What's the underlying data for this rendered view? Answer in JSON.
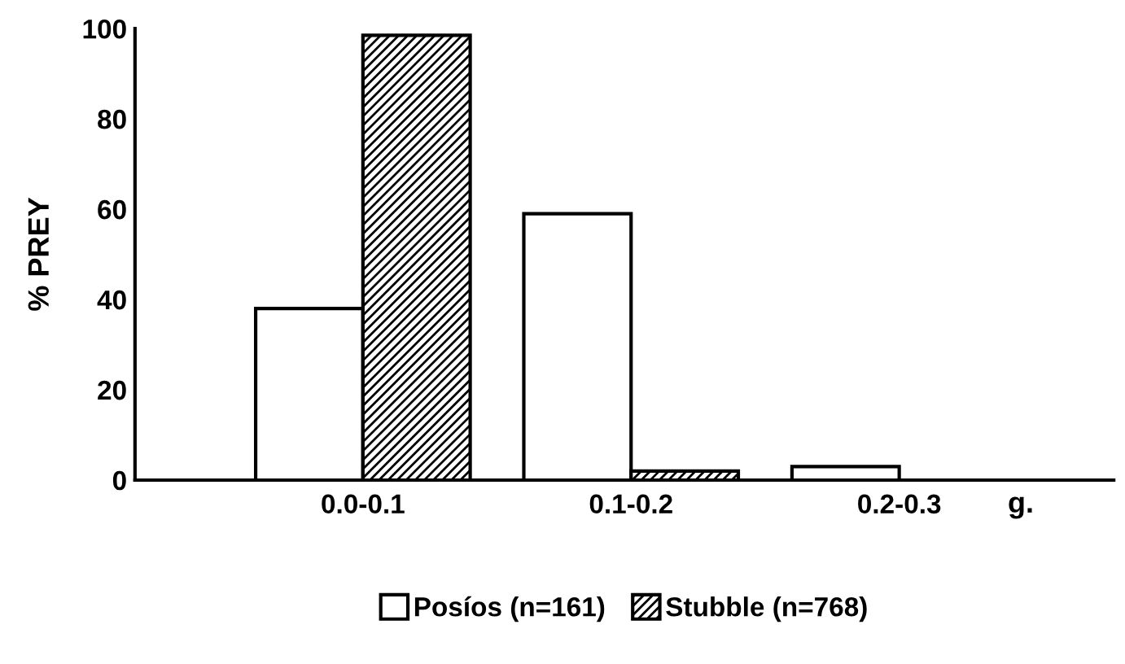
{
  "chart_data": {
    "type": "bar",
    "categories": [
      "0.0-0.1",
      "0.1-0.2",
      "0.2-0.3"
    ],
    "xlabel": "g.",
    "ylabel": "% PREY",
    "ylim": [
      0,
      100
    ],
    "yticks": [
      0,
      20,
      40,
      60,
      80,
      100
    ],
    "legend": "bottom",
    "grid": false,
    "series": [
      {
        "name": "Posíos (n=161)",
        "color": "#ffffff",
        "values": [
          38,
          59,
          3
        ]
      },
      {
        "name": "Stubble (n=768)",
        "color": "#000000",
        "values": [
          98.5,
          2,
          0
        ]
      }
    ]
  }
}
